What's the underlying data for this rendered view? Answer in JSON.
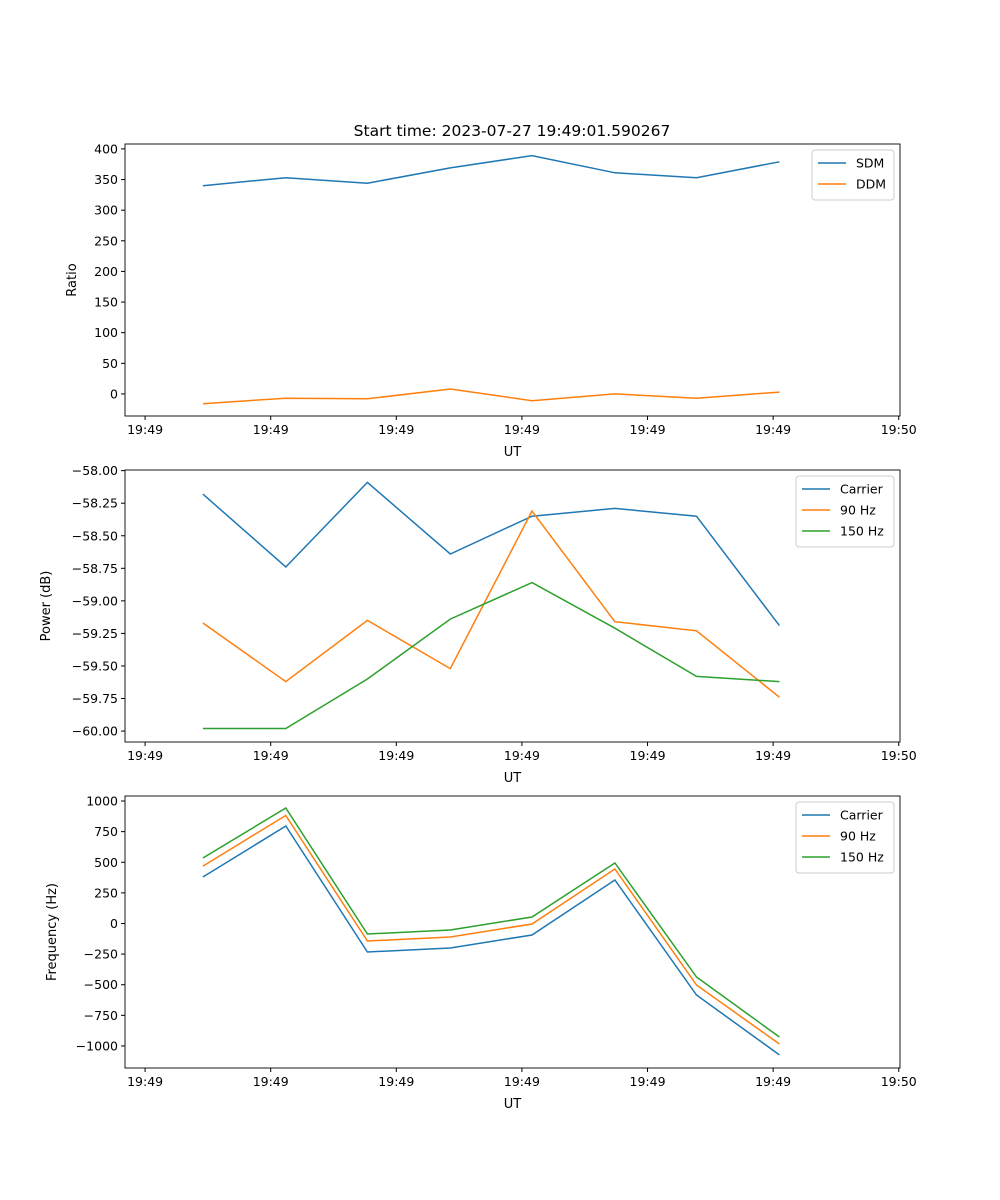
{
  "title": "Start time: 2023-07-27 19:49:01.590267",
  "colors": {
    "blue": "#1f77b4",
    "orange": "#ff7f0e",
    "green": "#2ca02c"
  },
  "chart_data": [
    {
      "type": "line",
      "xlabel": "UT",
      "ylabel": "Ratio",
      "x_seconds_after_1949": [
        4.6,
        11.2,
        17.7,
        24.3,
        30.8,
        37.4,
        43.9,
        50.5
      ],
      "xlim": [
        -1.6,
        60.1
      ],
      "xticks": [
        0,
        10,
        20,
        30,
        40,
        50,
        60
      ],
      "xtick_labels": [
        "19:49",
        "19:49",
        "19:49",
        "19:49",
        "19:49",
        "19:49",
        "19:50"
      ],
      "ylim": [
        -36,
        408
      ],
      "yticks": [
        0,
        50,
        100,
        150,
        200,
        250,
        300,
        350,
        400
      ],
      "ytick_labels": [
        "0",
        "50",
        "100",
        "150",
        "200",
        "250",
        "300",
        "350",
        "400"
      ],
      "legend": "top-right",
      "series": [
        {
          "name": "SDM",
          "color": "#1f77b4",
          "values": [
            340,
            353,
            344,
            369,
            389,
            361,
            353,
            379
          ]
        },
        {
          "name": "DDM",
          "color": "#ff7f0e",
          "values": [
            -16,
            -7,
            -8,
            8,
            -11,
            0,
            -7,
            3
          ]
        }
      ]
    },
    {
      "type": "line",
      "xlabel": "UT",
      "ylabel": "Power (dB)",
      "x_seconds_after_1949": [
        4.6,
        11.2,
        17.7,
        24.3,
        30.8,
        37.4,
        43.9,
        50.5
      ],
      "xlim": [
        -1.6,
        60.1
      ],
      "xticks": [
        0,
        10,
        20,
        30,
        40,
        50,
        60
      ],
      "xtick_labels": [
        "19:49",
        "19:49",
        "19:49",
        "19:49",
        "19:49",
        "19:49",
        "19:50"
      ],
      "ylim": [
        -60.084,
        -57.995
      ],
      "yticks": [
        -60,
        -59.75,
        -59.5,
        -59.25,
        -59,
        -58.75,
        -58.5,
        -58.25,
        -58
      ],
      "ytick_labels": [
        "−60.00",
        "−59.75",
        "−59.50",
        "−59.25",
        "−59.00",
        "−58.75",
        "−58.50",
        "−58.25",
        "−58.00"
      ],
      "legend": "top-right",
      "series": [
        {
          "name": "Carrier",
          "color": "#1f77b4",
          "values": [
            -58.18,
            -58.74,
            -58.09,
            -58.64,
            -58.35,
            -58.29,
            -58.35,
            -59.19
          ]
        },
        {
          "name": "90 Hz",
          "color": "#ff7f0e",
          "values": [
            -59.17,
            -59.62,
            -59.15,
            -59.52,
            -58.31,
            -59.16,
            -59.23,
            -59.74
          ]
        },
        {
          "name": "150 Hz",
          "color": "#2ca02c",
          "values": [
            -59.98,
            -59.98,
            -59.6,
            -59.14,
            -58.86,
            -59.21,
            -59.58,
            -59.62
          ]
        }
      ]
    },
    {
      "type": "line",
      "xlabel": "UT",
      "ylabel": "Frequency (Hz)",
      "x_seconds_after_1949": [
        4.6,
        11.2,
        17.7,
        24.3,
        30.8,
        37.4,
        43.9,
        50.5
      ],
      "xlim": [
        -1.6,
        60.1
      ],
      "xticks": [
        0,
        10,
        20,
        30,
        40,
        50,
        60
      ],
      "xtick_labels": [
        "19:49",
        "19:49",
        "19:49",
        "19:49",
        "19:49",
        "19:49",
        "19:50"
      ],
      "ylim": [
        -1180,
        1041
      ],
      "yticks": [
        -1000,
        -750,
        -500,
        -250,
        0,
        250,
        500,
        750,
        1000
      ],
      "ytick_labels": [
        "−1000",
        "−750",
        "−500",
        "−250",
        "0",
        "250",
        "500",
        "750",
        "1000"
      ],
      "legend": "top-right",
      "series": [
        {
          "name": "Carrier",
          "color": "#1f77b4",
          "values": [
            380,
            796,
            -233,
            -200,
            -94,
            355,
            -584,
            -1073
          ]
        },
        {
          "name": "90 Hz",
          "color": "#ff7f0e",
          "values": [
            469,
            882,
            -143,
            -110,
            -4,
            445,
            -502,
            -984
          ]
        },
        {
          "name": "150 Hz",
          "color": "#2ca02c",
          "values": [
            535,
            943,
            -86,
            -53,
            53,
            494,
            -437,
            -927
          ]
        }
      ]
    }
  ]
}
